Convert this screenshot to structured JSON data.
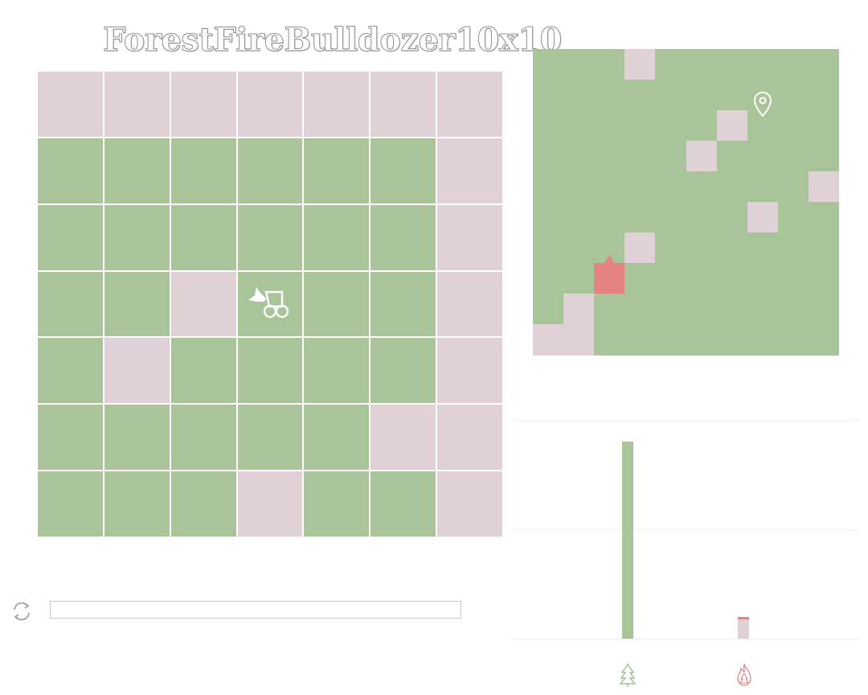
{
  "title": "ForestFireBulldozer10x10",
  "colors": {
    "tree": "#a9c499",
    "empty": "#dfd1d5",
    "fire": "#e58283",
    "grid_line": "#ffffff",
    "chart_grid": "#eeeeee"
  },
  "local_view": {
    "rows": 7,
    "cols": 7,
    "cells": [
      [
        "empty",
        "empty",
        "empty",
        "empty",
        "empty",
        "empty",
        "empty"
      ],
      [
        "tree",
        "tree",
        "tree",
        "tree",
        "tree",
        "tree",
        "empty"
      ],
      [
        "tree",
        "tree",
        "tree",
        "tree",
        "tree",
        "tree",
        "empty"
      ],
      [
        "tree",
        "tree",
        "empty",
        "tree",
        "tree",
        "tree",
        "empty"
      ],
      [
        "tree",
        "empty",
        "tree",
        "tree",
        "tree",
        "tree",
        "empty"
      ],
      [
        "tree",
        "tree",
        "tree",
        "tree",
        "tree",
        "empty",
        "empty"
      ],
      [
        "tree",
        "tree",
        "tree",
        "empty",
        "tree",
        "tree",
        "empty"
      ]
    ],
    "agent_icon": "bulldozer-icon",
    "agent_row": 3,
    "agent_col": 3
  },
  "global_map": {
    "rows": 10,
    "cols": 10,
    "cells": [
      [
        "tree",
        "tree",
        "tree",
        "empty",
        "tree",
        "tree",
        "tree",
        "tree",
        "tree",
        "tree"
      ],
      [
        "tree",
        "tree",
        "tree",
        "tree",
        "tree",
        "tree",
        "tree",
        "tree",
        "tree",
        "tree"
      ],
      [
        "tree",
        "tree",
        "tree",
        "tree",
        "tree",
        "tree",
        "empty",
        "tree",
        "tree",
        "tree"
      ],
      [
        "tree",
        "tree",
        "tree",
        "tree",
        "tree",
        "empty",
        "tree",
        "tree",
        "tree",
        "tree"
      ],
      [
        "tree",
        "tree",
        "tree",
        "tree",
        "tree",
        "tree",
        "tree",
        "tree",
        "tree",
        "empty"
      ],
      [
        "tree",
        "tree",
        "tree",
        "tree",
        "tree",
        "tree",
        "tree",
        "empty",
        "tree",
        "tree"
      ],
      [
        "tree",
        "tree",
        "tree",
        "empty",
        "tree",
        "tree",
        "tree",
        "tree",
        "tree",
        "tree"
      ],
      [
        "tree",
        "tree",
        "fire",
        "tree",
        "tree",
        "tree",
        "tree",
        "tree",
        "tree",
        "tree"
      ],
      [
        "tree",
        "empty",
        "tree",
        "tree",
        "tree",
        "tree",
        "tree",
        "tree",
        "tree",
        "tree"
      ],
      [
        "empty",
        "empty",
        "tree",
        "tree",
        "tree",
        "tree",
        "tree",
        "tree",
        "tree",
        "tree"
      ]
    ],
    "agent_marker_icon": "location-pin-icon",
    "agent_row": 2,
    "agent_col": 7
  },
  "controls": {
    "reset_icon": "refresh-icon",
    "action_input_value": "",
    "action_input_placeholder": ""
  },
  "chart_data": {
    "type": "bar",
    "categories": [
      "tree-icon",
      "fire-icon"
    ],
    "values": [
      90,
      10
    ],
    "segments": [
      {
        "category": "tree-icon",
        "stack": [
          {
            "kind": "tree",
            "value": 90
          }
        ]
      },
      {
        "category": "fire-icon",
        "stack": [
          {
            "kind": "empty",
            "value": 9
          },
          {
            "kind": "fire",
            "value": 1
          }
        ]
      }
    ],
    "ylim": [
      0,
      100
    ],
    "grid": true,
    "title": "",
    "xlabel": "",
    "ylabel": ""
  }
}
